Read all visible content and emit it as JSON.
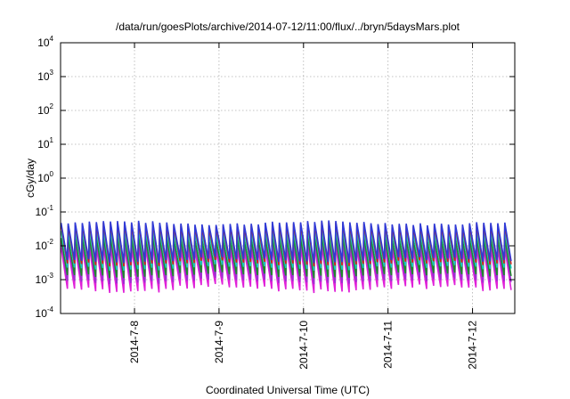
{
  "chart_data": {
    "type": "line",
    "title": "/data/run/goesPlots/archive/2014-07-12/11:00/flux/../bryn/5daysMars.plot",
    "xlabel": "Coordinated Universal Time (UTC)",
    "ylabel": "cGy/day",
    "y_scale": "log",
    "ylim_exponents": [
      -4,
      4
    ],
    "y_ticks": [
      {
        "base": "10",
        "exp": "4"
      },
      {
        "base": "10",
        "exp": "3"
      },
      {
        "base": "10",
        "exp": "2"
      },
      {
        "base": "10",
        "exp": "1"
      },
      {
        "base": "10",
        "exp": "0"
      },
      {
        "base": "10",
        "exp": "-1"
      },
      {
        "base": "10",
        "exp": "-2"
      },
      {
        "base": "10",
        "exp": "-3"
      },
      {
        "base": "10",
        "exp": "-4"
      }
    ],
    "xlim": [
      "2014-07-07 03:00",
      "2014-07-12 12:00"
    ],
    "x_ticks": [
      "2014-7-8",
      "2014-7-9",
      "2014-7-10",
      "2014-7-11",
      "2014-7-12"
    ],
    "x_tick_dates": [
      "2014-07-08",
      "2014-07-09",
      "2014-07-10",
      "2014-07-11",
      "2014-07-12"
    ],
    "grid": true,
    "legend": "none",
    "sawtooth_period_hours": 2.0,
    "series": [
      {
        "color": "#2f3ad6",
        "peak": [
          0.035,
          0.06
        ],
        "trough": [
          0.0025,
          0.005
        ]
      },
      {
        "color": "#d4201c",
        "peak": [
          0.03,
          0.055
        ],
        "trough": [
          0.002,
          0.004
        ]
      },
      {
        "color": "#18c8c0",
        "peak": [
          0.02,
          0.035
        ],
        "trough": [
          0.0015,
          0.003
        ]
      },
      {
        "color": "#1e8a2a",
        "peak": [
          0.012,
          0.022
        ],
        "trough": [
          0.0009,
          0.0018
        ]
      },
      {
        "color": "#9a2fd0",
        "peak": [
          0.009,
          0.016
        ],
        "trough": [
          0.0006,
          0.0012
        ]
      },
      {
        "color": "#e020d8",
        "peak": [
          0.006,
          0.012
        ],
        "trough": [
          0.0003,
          0.0008
        ]
      }
    ]
  }
}
